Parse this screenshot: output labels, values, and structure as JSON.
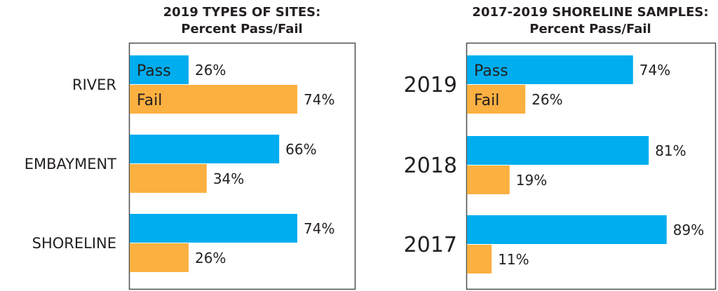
{
  "colors": {
    "pass": "#00adef",
    "fail": "#fbb040",
    "frame": "#4d4d4d",
    "text": "#231f20"
  },
  "chart_data": [
    {
      "type": "bar",
      "orientation": "horizontal",
      "title": "2019 TYPES OF SITES:",
      "subtitle": "Percent Pass/Fail",
      "categories": [
        "RIVER",
        "EMBAYMENT",
        "SHORELINE"
      ],
      "series": [
        {
          "name": "Pass",
          "values": [
            26,
            66,
            74
          ]
        },
        {
          "name": "Fail",
          "values": [
            74,
            34,
            26
          ]
        }
      ],
      "value_labels": {
        "Pass": [
          "26%",
          "66%",
          "74%"
        ],
        "Fail": [
          "74%",
          "34%",
          "26%"
        ]
      },
      "xlim": [
        0,
        100
      ],
      "grid": false,
      "legend": "inside-first-group"
    },
    {
      "type": "bar",
      "orientation": "horizontal",
      "title": "2017-2019 SHORELINE SAMPLES:",
      "subtitle": "Percent Pass/Fail",
      "categories": [
        "2019",
        "2018",
        "2017"
      ],
      "series": [
        {
          "name": "Pass",
          "values": [
            74,
            81,
            89
          ]
        },
        {
          "name": "Fail",
          "values": [
            26,
            19,
            11
          ]
        }
      ],
      "value_labels": {
        "Pass": [
          "74%",
          "81%",
          "89%"
        ],
        "Fail": [
          "26%",
          "19%",
          "11%"
        ]
      },
      "xlim": [
        0,
        100
      ],
      "grid": false,
      "legend": "inside-first-group"
    }
  ]
}
